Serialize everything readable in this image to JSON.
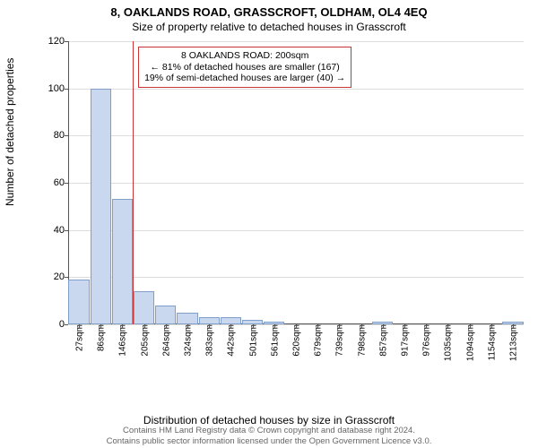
{
  "title": "8, OAKLANDS ROAD, GRASSCROFT, OLDHAM, OL4 4EQ",
  "subtitle": "Size of property relative to detached houses in Grasscroft",
  "ylabel": "Number of detached properties",
  "xlabel": "Distribution of detached houses by size in Grasscroft",
  "histogram": {
    "type": "bar",
    "bar_color": "#c9d8ee",
    "bar_border": "#7f9fc9",
    "background_color": "#ffffff",
    "grid_color": "#dddddd",
    "axis_color": "#555555",
    "ylim": [
      0,
      120
    ],
    "yticks": [
      0,
      20,
      40,
      60,
      80,
      100,
      120
    ],
    "categories": [
      "27sqm",
      "86sqm",
      "146sqm",
      "205sqm",
      "264sqm",
      "324sqm",
      "383sqm",
      "442sqm",
      "501sqm",
      "561sqm",
      "620sqm",
      "679sqm",
      "739sqm",
      "798sqm",
      "857sqm",
      "917sqm",
      "976sqm",
      "1035sqm",
      "1094sqm",
      "1154sqm",
      "1213sqm"
    ],
    "values": [
      19,
      100,
      53,
      14,
      8,
      5,
      3,
      3,
      2,
      1,
      0,
      0,
      0,
      0,
      1,
      0,
      0,
      0,
      0,
      0,
      1
    ],
    "reference_line": {
      "at_index": 2.98,
      "from_index": 2,
      "color": "#cc3333"
    },
    "bar_width": 0.96
  },
  "annotation": {
    "border_color": "#cc3333",
    "lines": [
      "8 OAKLANDS ROAD: 200sqm",
      "← 81% of detached houses are smaller (167)",
      "19% of semi-detached houses are larger (40) →"
    ]
  },
  "credits": [
    "Contains HM Land Registry data © Crown copyright and database right 2024.",
    "Contains public sector information licensed under the Open Government Licence v3.0."
  ]
}
